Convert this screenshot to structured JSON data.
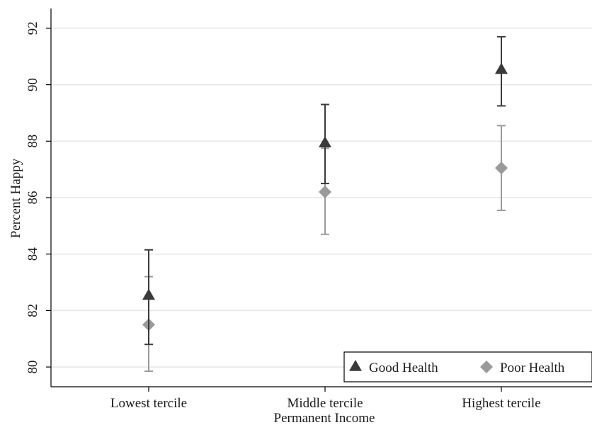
{
  "chart_data": {
    "type": "scatter",
    "title": "",
    "xlabel": "Permanent Income",
    "ylabel": "Percent Happy",
    "categories": [
      "Lowest tercile",
      "Middle tercile",
      "Highest tercile"
    ],
    "ylim": [
      79.3,
      92.7
    ],
    "yticks": [
      "80",
      "82",
      "84",
      "86",
      "88",
      "90",
      "92"
    ],
    "grid": true,
    "legend_position": "bottom-right",
    "series": [
      {
        "name": "Good Health",
        "marker": "triangle",
        "color": "#3a3a3a",
        "values": [
          82.5,
          87.9,
          90.5
        ],
        "ci_low": [
          80.8,
          86.5,
          89.25
        ],
        "ci_high": [
          84.15,
          89.3,
          91.7
        ]
      },
      {
        "name": "Poor Health",
        "marker": "diamond",
        "color": "#9a9a9a",
        "values": [
          81.5,
          86.2,
          87.05
        ],
        "ci_low": [
          79.85,
          84.7,
          85.55
        ],
        "ci_high": [
          83.2,
          87.75,
          88.55
        ]
      }
    ]
  }
}
